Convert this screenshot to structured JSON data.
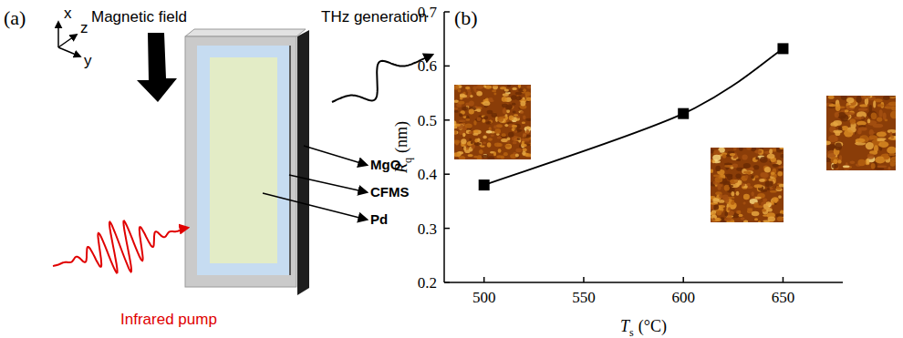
{
  "panel_labels": [
    "(a)",
    "(b)"
  ],
  "diagram": {
    "axes": [
      "x",
      "z",
      "y"
    ],
    "field_label": "Magnetic field",
    "thz_label": "THz generation",
    "pump_label": "Infrared pump",
    "layers": [
      "MgO",
      "CFMS",
      "Pd"
    ]
  },
  "chart_data": {
    "type": "line",
    "xlabel": {
      "symbol": "T",
      "subscript": "s",
      "unit": "(°C)"
    },
    "ylabel": {
      "symbol": "R",
      "subscript": "q",
      "unit": "(nm)"
    },
    "x": [
      500,
      600,
      650
    ],
    "series": [
      {
        "name": "Rq",
        "color": "#000000",
        "values": [
          0.38,
          0.512,
          0.632
        ],
        "marker": "square",
        "line_style": "smooth"
      }
    ],
    "xlim": [
      480,
      680
    ],
    "xticks": [
      500,
      550,
      600,
      650
    ],
    "ylim": [
      0.2,
      0.7
    ],
    "yticks": [
      0.2,
      0.3,
      0.4,
      0.5,
      0.6,
      0.7
    ],
    "grid": false
  }
}
